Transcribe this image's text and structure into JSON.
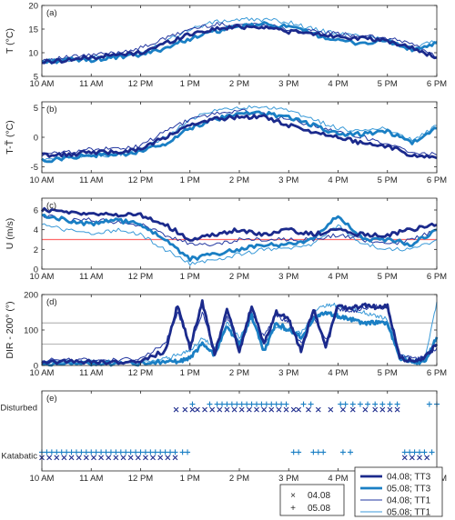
{
  "colors": {
    "tt3_0408": "#1b2a8c",
    "tt3_0508": "#1a7fc4",
    "tt1_0408": "#2236a0",
    "tt1_0508": "#3a9ad8",
    "threshold_line": "#ff6b6b",
    "ref_line": "#9a9a9a",
    "axis": "#262626"
  },
  "time_ticks": [
    "10 AM",
    "11 AM",
    "12 PM",
    "1 PM",
    "2 PM",
    "3 PM",
    "4 PM",
    "5 PM",
    "6 PM"
  ],
  "legend_markers": [
    {
      "symbol": "×",
      "label": "04.08",
      "color": "#1b2a8c"
    },
    {
      "symbol": "+",
      "label": "05.08",
      "color": "#1a7fc4"
    }
  ],
  "legend_lines": [
    {
      "label": "04.08; TT3",
      "color": "#1b2a8c",
      "weight": "thick"
    },
    {
      "label": "05.08; TT3",
      "color": "#1a7fc4",
      "weight": "thick"
    },
    {
      "label": "04.08; TT1",
      "color": "#2236a0",
      "weight": "thin"
    },
    {
      "label": "05.08; TT1",
      "color": "#3a9ad8",
      "weight": "thin"
    }
  ],
  "chart_data": [
    {
      "type": "line",
      "panel_label": "(a)",
      "ylabel": "T (°C)",
      "xlim": [
        10,
        18
      ],
      "ylim": [
        5,
        20
      ],
      "yticks": [
        5,
        10,
        15,
        20
      ],
      "x": [
        10,
        10.5,
        11,
        11.5,
        12,
        12.5,
        13,
        13.5,
        14,
        14.5,
        15,
        15.5,
        16,
        16.5,
        17,
        17.5,
        18
      ],
      "series": [
        {
          "key": "tt3_0408",
          "values": [
            8,
            8.5,
            9,
            9.5,
            10,
            12,
            14,
            15,
            15.5,
            15.5,
            14.5,
            14,
            13.5,
            13,
            12.5,
            11,
            9
          ]
        },
        {
          "key": "tt3_0508",
          "values": [
            8,
            8.5,
            8.5,
            9,
            9.5,
            11,
            13,
            14.5,
            15.5,
            16,
            15.5,
            14,
            12.5,
            12,
            12.5,
            10.5,
            12
          ]
        },
        {
          "key": "tt1_0408",
          "values": [
            8.5,
            9,
            9.5,
            10,
            11,
            13,
            15,
            16,
            16,
            16,
            15,
            14.5,
            14,
            13.5,
            13,
            12,
            9
          ]
        },
        {
          "key": "tt1_0508",
          "values": [
            8,
            8.5,
            9,
            9.5,
            10,
            12.5,
            15,
            16.5,
            17,
            17,
            16.5,
            15,
            14,
            13.5,
            13,
            11,
            12.5
          ]
        }
      ]
    },
    {
      "type": "line",
      "panel_label": "(b)",
      "ylabel": "T-T̃ (°C)",
      "xlim": [
        10,
        18
      ],
      "ylim": [
        -6,
        6
      ],
      "yticks": [
        -5,
        0,
        5
      ],
      "x": [
        10,
        10.5,
        11,
        11.5,
        12,
        12.5,
        13,
        13.5,
        14,
        14.5,
        15,
        15.5,
        16,
        16.5,
        17,
        17.5,
        18
      ],
      "series": [
        {
          "key": "tt3_0408",
          "values": [
            -3,
            -3,
            -2.5,
            -2.5,
            -2,
            0,
            2,
            3,
            3.5,
            3.5,
            2,
            1,
            0,
            -1,
            -1.5,
            -3,
            -3.5
          ]
        },
        {
          "key": "tt3_0508",
          "values": [
            -4,
            -3.5,
            -3,
            -3,
            -2.5,
            -1,
            1.5,
            3,
            4,
            4,
            3.5,
            2,
            0.5,
            0.5,
            1,
            -1,
            1.5
          ]
        },
        {
          "key": "tt1_0408",
          "values": [
            -3,
            -2.5,
            -2,
            -2,
            -1.5,
            1,
            3,
            4,
            4.5,
            4,
            3,
            2,
            1,
            0,
            -1,
            -2.5,
            -3
          ]
        },
        {
          "key": "tt1_0508",
          "values": [
            -4,
            -3.5,
            -3,
            -3,
            -2,
            0,
            3,
            4.5,
            5,
            5,
            4.5,
            3,
            1.5,
            1,
            1.5,
            -0.5,
            2
          ]
        }
      ]
    },
    {
      "type": "line",
      "panel_label": "(c)",
      "ylabel": "U (m/s)",
      "xlim": [
        10,
        18
      ],
      "ylim": [
        0,
        7.2
      ],
      "yticks": [
        0,
        2,
        4,
        6
      ],
      "threshold": 3,
      "x": [
        10,
        10.5,
        11,
        11.5,
        12,
        12.5,
        13,
        13.5,
        14,
        14.5,
        15,
        15.5,
        16,
        16.5,
        17,
        17.5,
        18
      ],
      "series": [
        {
          "key": "tt3_0408",
          "values": [
            6,
            5.8,
            5.6,
            5.5,
            5.5,
            4.5,
            3,
            3.5,
            4,
            3.5,
            4,
            3.5,
            4,
            3.5,
            3.5,
            4,
            4.5
          ]
        },
        {
          "key": "tt3_0508",
          "values": [
            5.5,
            5,
            4.5,
            5,
            4.5,
            3,
            1,
            1.5,
            2,
            2.5,
            2.5,
            3,
            5.5,
            3,
            3,
            2.5,
            4
          ]
        },
        {
          "key": "tt1_0408",
          "values": [
            5.5,
            5,
            5,
            4.8,
            4.5,
            3.5,
            2.5,
            2.5,
            3,
            3,
            3,
            3,
            3.5,
            3,
            2.5,
            3,
            4
          ]
        },
        {
          "key": "tt1_0508",
          "values": [
            4.5,
            4,
            3.5,
            4,
            3.5,
            2,
            0.5,
            1,
            1.5,
            2,
            2,
            2.5,
            4.5,
            2.5,
            2,
            2,
            3
          ]
        }
      ]
    },
    {
      "type": "line",
      "panel_label": "(d)",
      "ylabel": "DIR - 200° (°)",
      "xlim": [
        10,
        18
      ],
      "ylim": [
        0,
        200
      ],
      "yticks": [
        0,
        100,
        200
      ],
      "ref_lines": [
        60,
        120
      ],
      "x": [
        10,
        10.5,
        11,
        11.5,
        12,
        12.5,
        12.75,
        13,
        13.25,
        13.5,
        13.75,
        14,
        14.25,
        14.5,
        14.75,
        15,
        15.25,
        15.5,
        15.75,
        16,
        16.25,
        16.5,
        16.75,
        17,
        17.25,
        17.5,
        17.75,
        18
      ],
      "series": [
        {
          "key": "tt3_0408",
          "values": [
            10,
            10,
            10,
            10,
            15,
            40,
            170,
            50,
            180,
            30,
            160,
            40,
            170,
            60,
            150,
            130,
            40,
            160,
            50,
            170,
            160,
            170,
            165,
            170,
            20,
            15,
            20,
            60
          ]
        },
        {
          "key": "tt3_0508",
          "values": [
            5,
            5,
            5,
            5,
            5,
            10,
            10,
            20,
            60,
            30,
            110,
            60,
            140,
            40,
            120,
            100,
            80,
            130,
            150,
            140,
            130,
            120,
            120,
            120,
            20,
            10,
            10,
            80
          ]
        },
        {
          "key": "tt1_0408",
          "values": [
            15,
            15,
            15,
            15,
            20,
            60,
            150,
            60,
            150,
            40,
            140,
            60,
            150,
            80,
            140,
            120,
            60,
            140,
            70,
            160,
            150,
            160,
            170,
            160,
            30,
            20,
            20,
            50
          ]
        },
        {
          "key": "tt1_0508",
          "values": [
            10,
            10,
            10,
            10,
            10,
            20,
            30,
            40,
            80,
            50,
            120,
            80,
            130,
            60,
            110,
            100,
            90,
            150,
            170,
            170,
            160,
            150,
            140,
            130,
            30,
            15,
            15,
            180
          ]
        }
      ]
    },
    {
      "type": "scatter",
      "panel_label": "(e)",
      "categories": [
        "Katabatic",
        "Disturbed"
      ],
      "xlim": [
        10,
        18
      ],
      "ylim": [
        0,
        1
      ],
      "note": "x in decimal hours; 1 = Disturbed, 0 = Katabatic",
      "series": [
        {
          "key": "tt3_0408",
          "marker": "x",
          "label": "04.08",
          "disturbed_x": [
            12.72,
            12.9,
            13.05,
            13.15,
            13.3,
            13.45,
            13.6,
            13.75,
            13.9,
            14.05,
            14.2,
            14.35,
            14.5,
            14.65,
            14.8,
            14.95,
            15.1,
            15.2,
            15.4,
            15.6,
            15.85,
            16.1,
            16.3,
            16.55,
            16.75,
            16.9,
            17.05,
            17.2
          ],
          "katabatic_x": [
            10.0,
            10.15,
            10.3,
            10.45,
            10.6,
            10.75,
            10.9,
            11.05,
            11.2,
            11.35,
            11.5,
            11.65,
            11.8,
            11.95,
            12.1,
            12.25,
            12.4,
            12.55,
            12.7,
            17.35,
            17.5,
            17.65,
            17.8
          ]
        },
        {
          "key": "tt3_0508",
          "marker": "+",
          "label": "05.08",
          "disturbed_x": [
            13.05,
            13.4,
            13.55,
            13.65,
            13.75,
            13.85,
            13.95,
            14.05,
            14.15,
            14.25,
            14.35,
            14.45,
            14.55,
            14.65,
            14.75,
            14.85,
            14.95,
            15.3,
            15.45,
            16.05,
            16.15,
            16.3,
            16.45,
            16.6,
            16.75,
            16.9,
            17.05,
            17.2,
            17.85,
            18.0
          ],
          "katabatic_x": [
            10.0,
            10.1,
            10.2,
            10.3,
            10.4,
            10.5,
            10.6,
            10.7,
            10.8,
            10.9,
            11.0,
            11.1,
            11.2,
            11.3,
            11.4,
            11.5,
            11.6,
            11.7,
            11.8,
            11.9,
            12.0,
            12.1,
            12.2,
            12.3,
            12.4,
            12.5,
            12.6,
            12.7,
            12.85,
            12.95,
            15.1,
            15.2,
            15.5,
            15.6,
            15.7,
            16.1,
            16.25,
            17.35,
            17.45,
            17.55,
            17.65,
            17.75,
            17.9
          ]
        }
      ]
    }
  ]
}
